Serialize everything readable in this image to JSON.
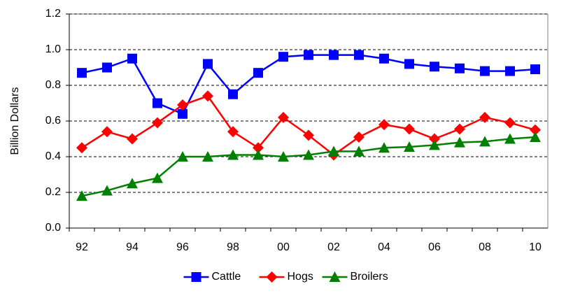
{
  "chart_data": {
    "type": "line",
    "y_label": "Billion Dollars",
    "categories": [
      "92",
      null,
      "94",
      null,
      "96",
      null,
      "98",
      null,
      "00",
      null,
      "02",
      null,
      "04",
      null,
      "06",
      null,
      "08",
      null,
      "10"
    ],
    "series": [
      {
        "name": "Cattle",
        "color": "#0000ff",
        "marker": "square",
        "values": [
          0.87,
          0.9,
          0.95,
          0.7,
          0.64,
          0.92,
          0.75,
          0.87,
          0.96,
          0.97,
          0.97,
          0.97,
          0.95,
          0.92,
          0.905,
          0.895,
          0.88,
          0.88,
          0.89
        ]
      },
      {
        "name": "Hogs",
        "color": "#ff0000",
        "marker": "diamond",
        "values": [
          0.45,
          0.54,
          0.5,
          0.59,
          0.69,
          0.74,
          0.54,
          0.45,
          0.62,
          0.52,
          0.41,
          0.51,
          0.58,
          0.555,
          0.5,
          0.555,
          0.62,
          0.59,
          0.55
        ]
      },
      {
        "name": "Broilers",
        "color": "#008000",
        "marker": "triangle",
        "values": [
          0.18,
          0.21,
          0.25,
          0.28,
          0.4,
          0.4,
          0.41,
          0.41,
          0.4,
          0.41,
          0.43,
          0.43,
          0.45,
          0.455,
          0.465,
          0.48,
          0.485,
          0.5,
          0.51
        ]
      }
    ],
    "ylim": [
      0,
      1.2
    ],
    "yticks": [
      {
        "value": 0,
        "label": "0.0"
      },
      0.2,
      0.4,
      0.6,
      0.8,
      {
        "value": 1,
        "label": "1.0"
      },
      1.2
    ],
    "grid": true,
    "legend": "bottom"
  }
}
